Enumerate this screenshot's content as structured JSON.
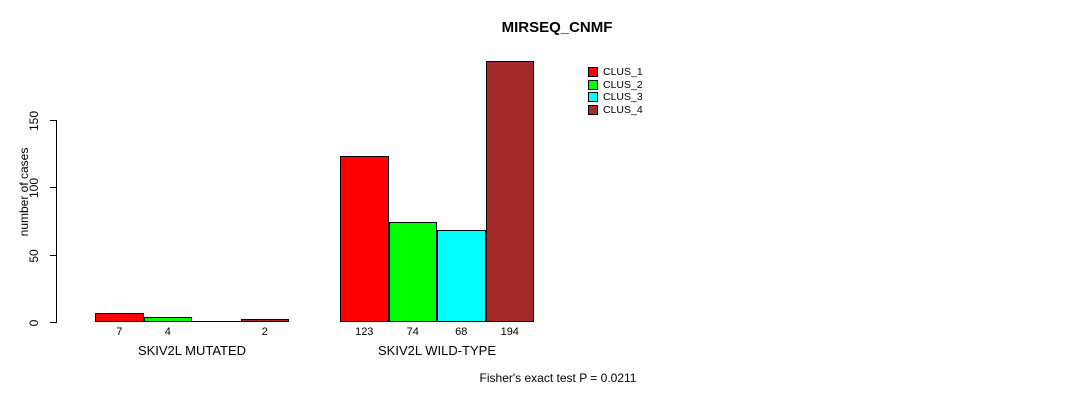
{
  "chart_data": {
    "type": "bar",
    "title": "MIRSEQ_CNMF",
    "ylabel": "number of cases",
    "xlabel": "",
    "groups": [
      "SKIV2L MUTATED",
      "SKIV2L WILD-TYPE"
    ],
    "series": [
      {
        "name": "CLUS_1",
        "color": "#FF0000",
        "values": [
          7,
          123
        ]
      },
      {
        "name": "CLUS_2",
        "color": "#00FF00",
        "values": [
          4,
          74
        ]
      },
      {
        "name": "CLUS_3",
        "color": "#00FFFF",
        "values": [
          0,
          68
        ]
      },
      {
        "name": "CLUS_4",
        "color": "#A52A2A",
        "values": [
          2,
          194
        ]
      }
    ],
    "bar_value_labels_shown": true,
    "zero_value_labels_hidden": true,
    "yticks": [
      0,
      50,
      100,
      150
    ],
    "ylim": [
      0,
      150
    ],
    "grid": false,
    "legend_position": "top-right",
    "annotation": "Fisher's exact test P = 0.0211"
  }
}
